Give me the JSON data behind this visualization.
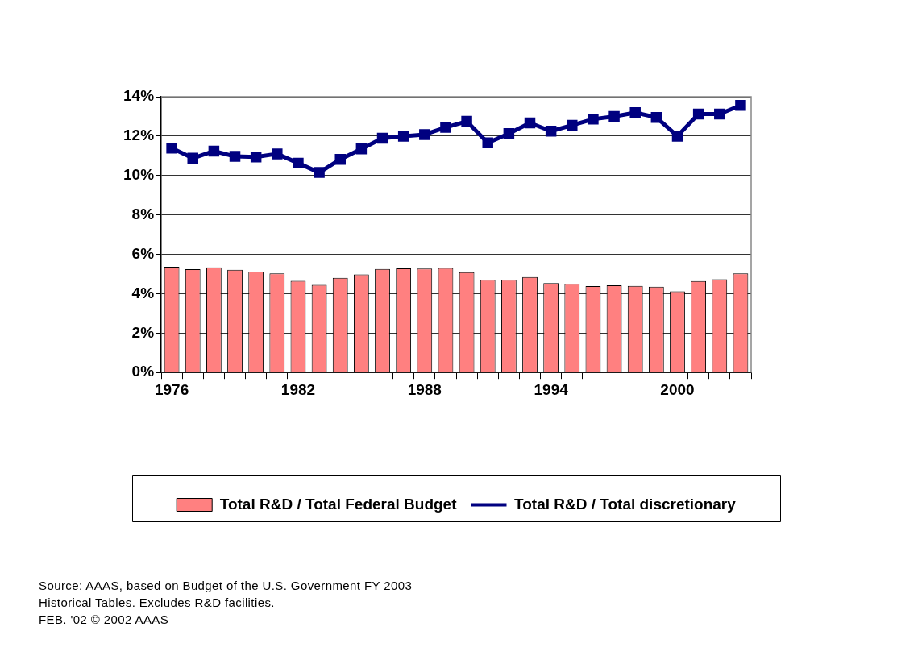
{
  "chart_data": {
    "type": "bar",
    "categories": [
      "1976",
      null,
      null,
      null,
      null,
      null,
      "1982",
      null,
      null,
      null,
      null,
      null,
      "1988",
      null,
      null,
      null,
      null,
      null,
      "1994",
      null,
      null,
      null,
      null,
      null,
      "2000",
      null,
      null,
      null
    ],
    "series": [
      {
        "name": "Total R&D / Total Federal Budget",
        "color": "#ff8080",
        "values": [
          5.37,
          5.24,
          5.34,
          5.21,
          5.12,
          5.03,
          4.65,
          4.45,
          4.81,
          4.98,
          5.26,
          5.29,
          5.28,
          5.31,
          5.09,
          4.7,
          4.7,
          4.85,
          4.54,
          4.5,
          4.39,
          4.43,
          4.4,
          4.35,
          4.12,
          4.64,
          4.73,
          5.03
        ]
      },
      {
        "name": "Total R&D / Total discretionary",
        "type": "line",
        "color": "#000080",
        "marker": "square",
        "line_style": "solid",
        "values": [
          11.39,
          10.88,
          11.24,
          10.97,
          10.94,
          11.1,
          10.63,
          10.15,
          10.82,
          11.35,
          11.89,
          11.99,
          12.08,
          12.44,
          12.75,
          11.66,
          12.13,
          12.67,
          12.25,
          12.55,
          12.86,
          13.0,
          13.19,
          12.95,
          12.0,
          13.12,
          13.12,
          13.56
        ]
      }
    ],
    "ylim": [
      0,
      14
    ],
    "yticks": [
      {
        "value": 0,
        "label": "0%"
      },
      {
        "value": 2,
        "label": "2%"
      },
      {
        "value": 4,
        "label": "4%"
      },
      {
        "value": 6,
        "label": "6%"
      },
      {
        "value": 8,
        "label": "8%"
      },
      {
        "value": 10,
        "label": "10%"
      },
      {
        "value": 12,
        "label": "12%"
      },
      {
        "value": 14,
        "label": "14%"
      }
    ],
    "grid": "y",
    "legend": "bottom",
    "annotations": [
      "Source: AAAS, based on Budget of the U.S. Government FY 2003",
      "Historical Tables. Excludes R&D facilities.",
      "FEB. '02 © 2002 AAAS"
    ]
  }
}
